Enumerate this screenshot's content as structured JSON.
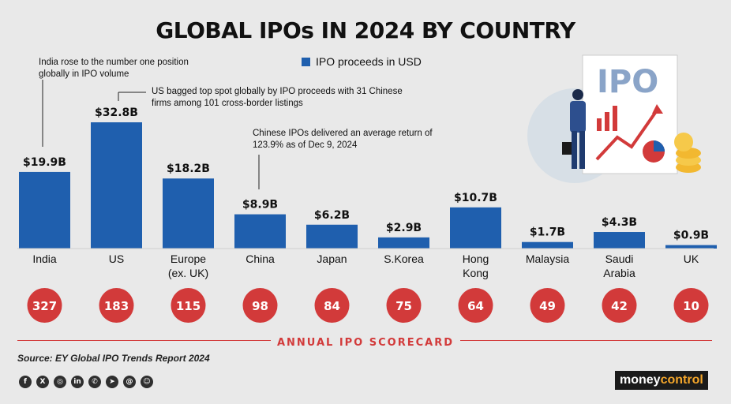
{
  "title": "GLOBAL IPOs IN 2024 BY COUNTRY",
  "legend_label": "IPO proceeds in USD",
  "notes": {
    "india": "India rose to the number one position globally in IPO volume",
    "us": "US bagged top spot globally by IPO proceeds with 31 Chinese firms among 101 cross-border listings",
    "china": "Chinese IPOs delivered an average return of 123.9% as of Dec 9, 2024"
  },
  "scorecard_label": "ANNUAL IPO SCORECARD",
  "source": "Source: EY Global IPO Trends Report 2024",
  "brand": {
    "part1": "money",
    "part2": "control"
  },
  "illustration_text": "IPO",
  "colors": {
    "bar": "#1f5fae",
    "circle": "#d23a3a",
    "background": "#e9e9e9"
  },
  "socials": [
    "facebook-icon",
    "x-icon",
    "instagram-icon",
    "linkedin-icon",
    "whatsapp-icon",
    "telegram-icon",
    "threads-icon",
    "snapchat-icon"
  ],
  "chart_data": {
    "type": "bar",
    "title": "GLOBAL IPOs IN 2024 BY COUNTRY",
    "categories": [
      [
        "India"
      ],
      [
        "US"
      ],
      [
        "Europe",
        "(ex. UK)"
      ],
      [
        "China"
      ],
      [
        "Japan"
      ],
      [
        "S.Korea"
      ],
      [
        "Hong",
        "Kong"
      ],
      [
        "Malaysia"
      ],
      [
        "Saudi",
        "Arabia"
      ],
      [
        "UK"
      ]
    ],
    "series": [
      {
        "name": "IPO proceeds in USD",
        "values": [
          19.9,
          32.8,
          18.2,
          8.9,
          6.2,
          2.9,
          10.7,
          1.7,
          4.3,
          0.9
        ]
      }
    ],
    "value_labels": [
      "$19.9B",
      "$32.8B",
      "$18.2B",
      "$8.9B",
      "$6.2B",
      "$2.9B",
      "$10.7B",
      "$1.7B",
      "$4.3B",
      "$0.9B"
    ],
    "ipo_counts": [
      327,
      183,
      115,
      98,
      84,
      75,
      64,
      49,
      42,
      10
    ],
    "ylim": [
      0,
      32.8
    ],
    "grid": false,
    "legend": "top-center"
  }
}
